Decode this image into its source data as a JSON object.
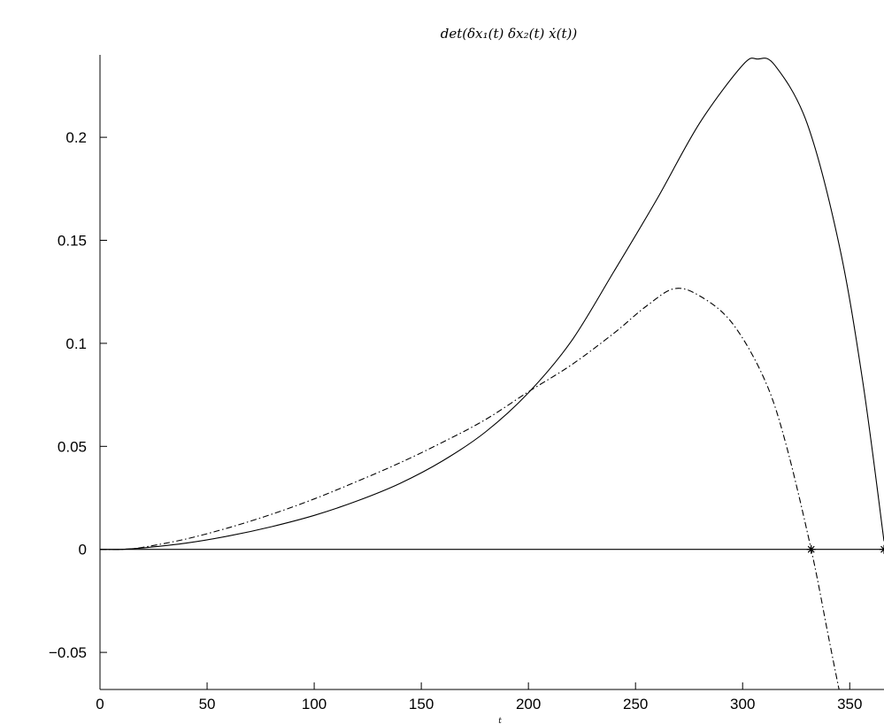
{
  "chart_data": {
    "type": "line",
    "title": "det(δx₁(t) δx₂(t) ẋ(t))",
    "xlabel": "t",
    "ylabel": "",
    "xlim": [
      0,
      366
    ],
    "ylim": [
      -0.068,
      0.24
    ],
    "xticks": [
      0,
      50,
      100,
      150,
      200,
      250,
      300,
      350
    ],
    "xtick_labels": [
      "0",
      "50",
      "100",
      "150",
      "200",
      "250",
      "300",
      "350"
    ],
    "yticks": [
      -0.05,
      0,
      0.05,
      0.1,
      0.15,
      0.2
    ],
    "ytick_labels": [
      "−0.05",
      "0",
      "0.05",
      "0.1",
      "0.15",
      "0.2"
    ],
    "grid": false,
    "series": [
      {
        "style": "solid",
        "color": "#000000",
        "x": [
          0,
          10,
          20,
          40,
          60,
          80,
          100,
          120,
          140,
          160,
          180,
          200,
          220,
          240,
          260,
          280,
          300,
          307,
          315,
          330,
          345,
          356,
          366
        ],
        "y": [
          0,
          0,
          0.0007,
          0.003,
          0.0065,
          0.011,
          0.0165,
          0.0235,
          0.032,
          0.043,
          0.057,
          0.076,
          0.101,
          0.135,
          0.17,
          0.207,
          0.235,
          0.238,
          0.235,
          0.207,
          0.148,
          0.082,
          0.004
        ]
      },
      {
        "style": "dashdot",
        "color": "#000000",
        "x": [
          0,
          10,
          20,
          40,
          60,
          80,
          100,
          120,
          140,
          160,
          180,
          200,
          220,
          240,
          255,
          268,
          280,
          295,
          310,
          320,
          332,
          340,
          345
        ],
        "y": [
          0,
          0,
          0.001,
          0.005,
          0.0105,
          0.017,
          0.0245,
          0.033,
          0.042,
          0.052,
          0.063,
          0.0765,
          0.0895,
          0.105,
          0.118,
          0.1265,
          0.123,
          0.11,
          0.083,
          0.052,
          0.0,
          -0.042,
          -0.068
        ]
      },
      {
        "style": "solid",
        "color": "#000000",
        "x": [
          0,
          366
        ],
        "y": [
          0,
          0
        ]
      }
    ],
    "markers": [
      {
        "symbol": "*",
        "x": 332,
        "y": 0
      },
      {
        "symbol": "*",
        "x": 366,
        "y": 0
      }
    ]
  }
}
